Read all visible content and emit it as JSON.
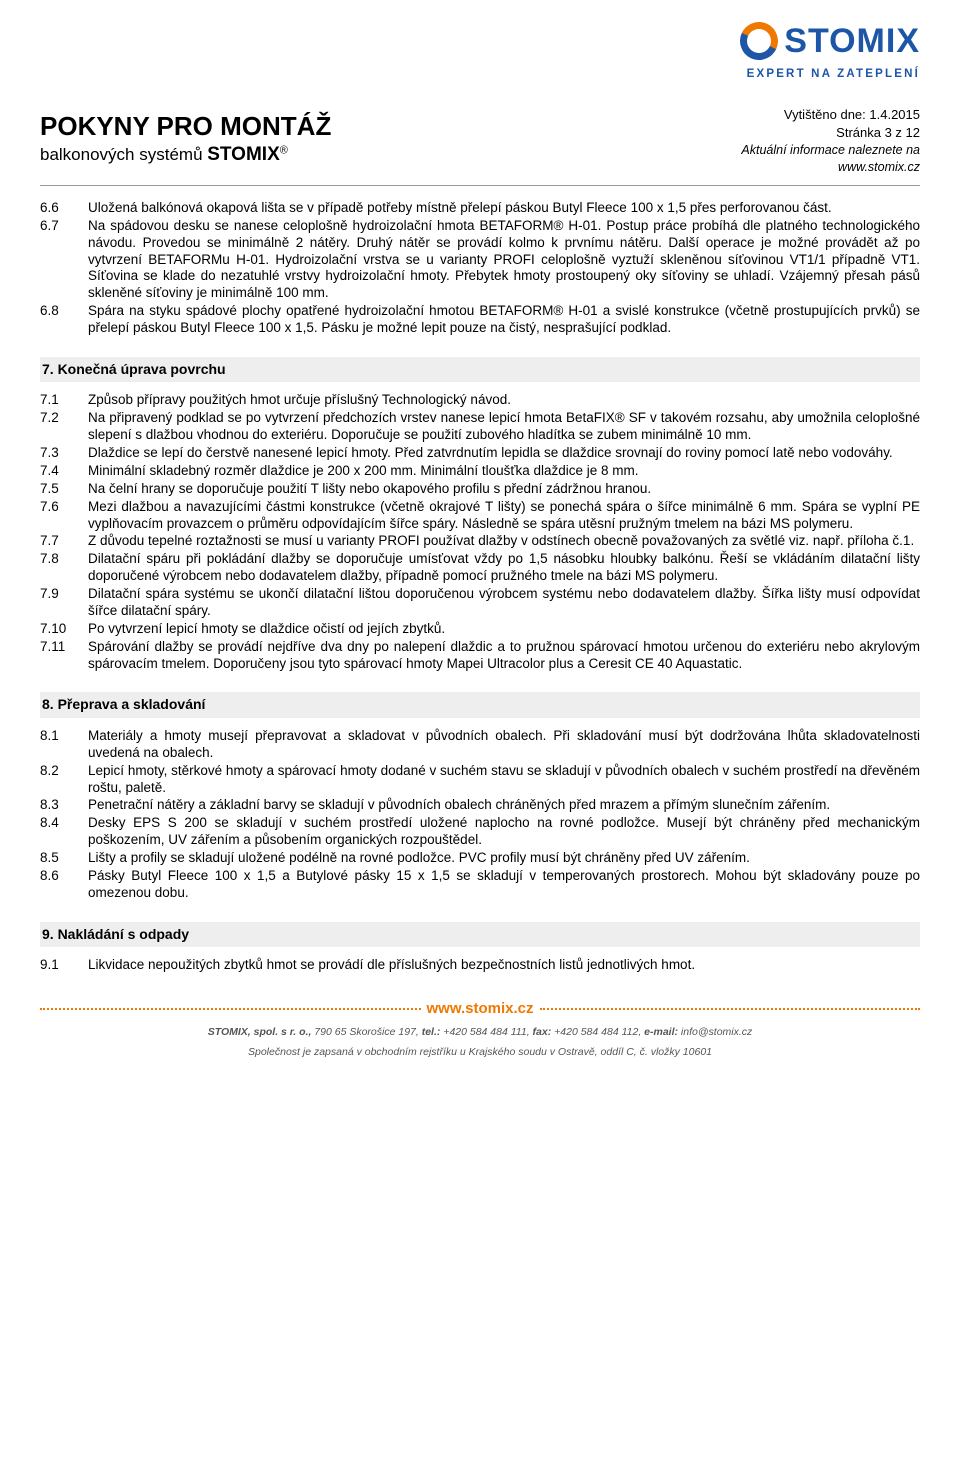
{
  "header": {
    "main_title": "POKYNY PRO MONTÁŽ",
    "subtitle_prefix": "balkonových systémů ",
    "subtitle_brand": "STOMIX",
    "logo_text": "STOMIX",
    "logo_tagline": "EXPERT NA ZATEPLENÍ",
    "print_date_label": "Vytištěno dne: 1.4.2015",
    "page_label": "Stránka 3 z 12",
    "info_prefix": "Aktuální informace naleznete na",
    "info_url": "www.stomix.cz"
  },
  "section6": {
    "items": [
      {
        "n": "6.6",
        "t": "Uložená balkónová okapová lišta se v případě potřeby místně přelepí páskou Butyl Fleece 100 x 1,5 přes perforovanou část."
      },
      {
        "n": "6.7",
        "t": "Na spádovou desku  se nanese celoplošně hydroizolační hmota BETAFORM® H-01. Postup práce probíhá dle platného technologického návodu. Provedou se minimálně 2 nátěry. Druhý nátěr se provádí kolmo k prvnímu nátěru. Další operace je možné provádět až po vytvrzení BETAFORMu H-01. Hydroizolační vrstva se u varianty PROFI celoplošně vyztuží skleněnou síťovinou VT1/1 případně VT1. Síťovina se klade do nezatuhlé vrstvy hydroizolační hmoty. Přebytek hmoty prostoupený oky síťoviny se uhladí. Vzájemný přesah pásů skleněné síťoviny je minimálně 100 mm."
      },
      {
        "n": "6.8",
        "t": "Spára na styku spádové plochy opatřené hydroizolační hmotou BETAFORM® H-01 a svislé konstrukce (včetně prostupujících prvků) se přelepí páskou Butyl Fleece 100 x 1,5. Pásku je možné lepit pouze na čistý, nesprašující podklad."
      }
    ]
  },
  "section7": {
    "title": "7. Konečná úprava povrchu",
    "items": [
      {
        "n": "7.1",
        "t": "Způsob přípravy použitých hmot určuje příslušný Technologický návod."
      },
      {
        "n": "7.2",
        "t": "Na připravený podklad se po vytvrzení předchozích vrstev nanese lepicí hmota BetaFIX® SF v takovém rozsahu, aby umožnila celoplošné slepení s dlažbou vhodnou do exteriéru. Doporučuje se použití zubového hladítka se zubem minimálně 10 mm."
      },
      {
        "n": "7.3",
        "t": "Dlaždice se lepí do čerstvě nanesené lepicí hmoty. Před zatvrdnutím lepidla se dlaždice srovnají do roviny pomocí latě nebo vodováhy."
      },
      {
        "n": "7.4",
        "t": "Minimální skladebný rozměr dlaždice je 200 x 200 mm. Minimální tloušťka dlaždice je 8 mm."
      },
      {
        "n": "7.5",
        "t": "Na čelní hrany se doporučuje použití T lišty nebo okapového profilu s přední zádržnou hranou."
      },
      {
        "n": "7.6",
        "t": "Mezi dlažbou a navazujícími částmi konstrukce (včetně okrajové T lišty) se ponechá spára o šířce minimálně 6 mm. Spára se vyplní PE vyplňovacím provazcem o průměru odpovídajícím šířce spáry. Následně se spára utěsní pružným tmelem na bázi MS polymeru."
      },
      {
        "n": "7.7",
        "t": "Z důvodu tepelné roztažnosti se musí u varianty PROFI používat dlažby v odstínech obecně považovaných za světlé viz. např. příloha č.1."
      },
      {
        "n": "7.8",
        "t": "Dilatační spáru při pokládání dlažby se doporučuje umísťovat vždy po 1,5 násobku hloubky balkónu. Řeší se vkládáním dilatační lišty doporučené výrobcem nebo dodavatelem dlažby, případně pomocí pružného tmele na bázi MS polymeru."
      },
      {
        "n": "7.9",
        "t": "Dilatační spára systému se ukončí dilatační lištou doporučenou výrobcem systému nebo dodavatelem dlažby. Šířka lišty musí odpovídat šířce dilatační spáry."
      },
      {
        "n": "7.10",
        "t": "Po vytvrzení lepicí hmoty se dlaždice očistí od jejích zbytků."
      },
      {
        "n": "7.11",
        "t": "Spárování dlažby se provádí nejdříve dva dny po nalepení dlaždic a to pružnou spárovací hmotou určenou do exteriéru nebo akrylovým spárovacím tmelem. Doporučeny jsou tyto spárovací hmoty Mapei Ultracolor plus a Ceresit CE 40 Aquastatic."
      }
    ]
  },
  "section8": {
    "title": "8. Přeprava a skladování",
    "items": [
      {
        "n": "8.1",
        "t": "Materiály a hmoty musejí přepravovat a skladovat v původních obalech. Při skladování musí být dodržována lhůta skladovatelnosti uvedená na obalech."
      },
      {
        "n": "8.2",
        "t": "Lepicí hmoty, stěrkové hmoty a spárovací hmoty dodané v suchém stavu se skladují v původních obalech v suchém prostředí na dřevěném roštu, paletě."
      },
      {
        "n": "8.3",
        "t": "Penetrační nátěry a základní barvy se skladují v původních obalech chráněných před mrazem a přímým slunečním zářením."
      },
      {
        "n": "8.4",
        "t": "Desky EPS S 200 se skladují v suchém prostředí uložené naplocho na rovné podložce. Musejí být chráněny před mechanickým poškozením, UV zářením a působením organických rozpouštědel."
      },
      {
        "n": "8.5",
        "t": "Lišty a profily se skladují uložené podélně na rovné podložce. PVC profily musí být chráněny před UV zářením."
      },
      {
        "n": "8.6",
        "t": "Pásky Butyl Fleece 100 x 1,5 a Butylové pásky 15 x 1,5 se skladují v temperovaných prostorech. Mohou být skladovány pouze po omezenou dobu."
      }
    ]
  },
  "section9": {
    "title": "9. Nakládání s odpady",
    "items": [
      {
        "n": "9.1",
        "t": "Likvidace nepoužitých zbytků hmot se provádí dle příslušných bezpečnostních listů jednotlivých hmot."
      }
    ]
  },
  "footer": {
    "url": "www.stomix.cz",
    "company": "STOMIX, spol. s r. o.,",
    "address": " 790 65 Skorošice 197, ",
    "tel_label": "tel.:",
    "tel": " +420 584 484 111, ",
    "fax_label": "fax:",
    "fax": " +420 584 484 112, ",
    "email_label": "e-mail:",
    "email": " info@stomix.cz",
    "reg": "Společnost je zapsaná v obchodním rejstříku u Krajského soudu v Ostravě, oddíl C, č. vložky 10601"
  },
  "colors": {
    "accent_orange": "#ef7900",
    "accent_blue": "#1d56a6",
    "section_bg": "#eeeeee",
    "text": "#000000",
    "footer_text": "#555555"
  }
}
